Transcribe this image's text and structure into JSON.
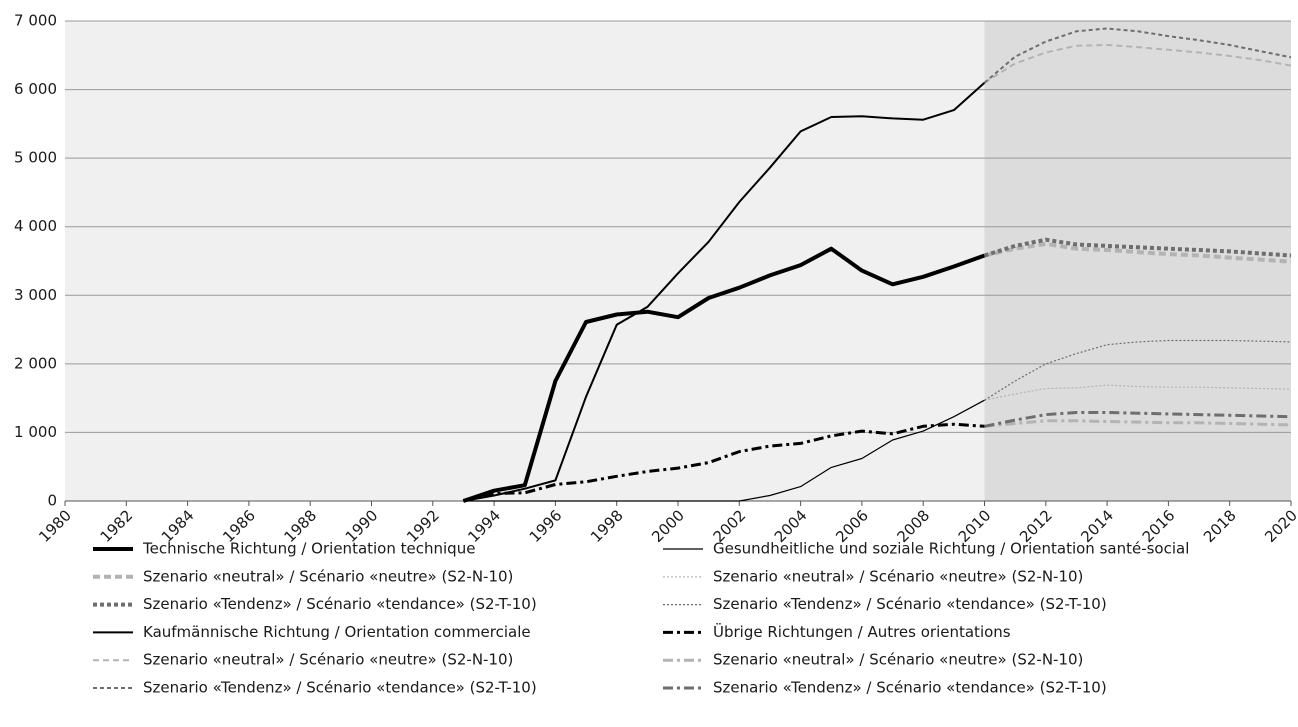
{
  "chart_data": {
    "type": "line",
    "x": [
      1993,
      1994,
      1995,
      1996,
      1997,
      1998,
      1999,
      2000,
      2001,
      2002,
      2003,
      2004,
      2005,
      2006,
      2007,
      2008,
      2009,
      2010,
      2011,
      2012,
      2013,
      2014,
      2015,
      2016,
      2017,
      2018,
      2019,
      2020
    ],
    "xlim": [
      1980,
      2020
    ],
    "xticks": [
      1980,
      1982,
      1984,
      1986,
      1988,
      1990,
      1992,
      1994,
      1996,
      1998,
      2000,
      2002,
      2004,
      2006,
      2008,
      2010,
      2012,
      2014,
      2016,
      2018,
      2020
    ],
    "ylim": [
      0,
      7000
    ],
    "yticks": [
      0,
      {
        "value": 1000,
        "label": "1 000"
      },
      {
        "value": 2000,
        "label": "2 000"
      },
      {
        "value": 3000,
        "label": "3 000"
      },
      {
        "value": 4000,
        "label": "4 000"
      },
      {
        "value": 5000,
        "label": "5 000"
      },
      {
        "value": 6000,
        "label": "6 000"
      },
      {
        "value": 7000,
        "label": "7 000"
      }
    ],
    "grid": true,
    "series": [
      {
        "name": "Technische Richtung / Orientation technique",
        "color": "#000000",
        "values": [
          0,
          150,
          230,
          1750,
          2610,
          2720,
          2760,
          2680,
          2960,
          3110,
          3290,
          3440,
          3680,
          3360,
          3160,
          3270,
          3420,
          3580,
          null,
          null,
          null,
          null,
          null,
          null,
          null,
          null,
          null,
          null
        ]
      },
      {
        "name": "Szenario «neutral» / Scénario «neutre» (S2-N-10)",
        "color": "#b3b3b3",
        "values": [
          null,
          null,
          null,
          null,
          null,
          null,
          null,
          null,
          null,
          null,
          null,
          null,
          null,
          null,
          null,
          null,
          null,
          3580,
          3680,
          3750,
          3680,
          3660,
          3630,
          3600,
          3580,
          3550,
          3520,
          3490
        ]
      },
      {
        "name": "Szenario «Tendenz» / Scénario «tendance» (S2-T-10)",
        "color": "#6e6e6e",
        "values": [
          null,
          null,
          null,
          null,
          null,
          null,
          null,
          null,
          null,
          null,
          null,
          null,
          null,
          null,
          null,
          null,
          null,
          3580,
          3720,
          3810,
          3740,
          3720,
          3700,
          3680,
          3660,
          3640,
          3610,
          3580
        ]
      },
      {
        "name": "Kaufmännische Richtung / Orientation commerciale",
        "color": "#000000",
        "values": [
          0,
          80,
          180,
          300,
          1520,
          2570,
          2830,
          3320,
          3780,
          4360,
          4860,
          5390,
          5600,
          5610,
          5580,
          5560,
          5700,
          6100,
          null,
          null,
          null,
          null,
          null,
          null,
          null,
          null,
          null,
          null
        ]
      },
      {
        "name": "Szenario «neutral» / Scénario «neutre» (S2-N-10)",
        "color": "#b3b3b3",
        "values": [
          null,
          null,
          null,
          null,
          null,
          null,
          null,
          null,
          null,
          null,
          null,
          null,
          null,
          null,
          null,
          null,
          null,
          6100,
          6380,
          6540,
          6640,
          6650,
          6620,
          6580,
          6540,
          6490,
          6430,
          6350
        ]
      },
      {
        "name": "Szenario «Tendenz» / Scénario «tendance» (S2-T-10)",
        "color": "#6e6e6e",
        "values": [
          null,
          null,
          null,
          null,
          null,
          null,
          null,
          null,
          null,
          null,
          null,
          null,
          null,
          null,
          null,
          null,
          null,
          6100,
          6480,
          6700,
          6850,
          6890,
          6850,
          6780,
          6720,
          6650,
          6560,
          6470
        ]
      },
      {
        "name": "Gesundheitliche und soziale Richtung / Orientation santé-social",
        "color": "#000000",
        "values": [
          0,
          0,
          0,
          0,
          0,
          0,
          0,
          0,
          0,
          0,
          80,
          210,
          490,
          620,
          890,
          1020,
          1230,
          1470,
          null,
          null,
          null,
          null,
          null,
          null,
          null,
          null,
          null,
          null
        ]
      },
      {
        "name": "Szenario «neutral» / Scénario «neutre» (S2-N-10)",
        "color": "#b3b3b3",
        "values": [
          null,
          null,
          null,
          null,
          null,
          null,
          null,
          null,
          null,
          null,
          null,
          null,
          null,
          null,
          null,
          null,
          null,
          1470,
          1560,
          1640,
          1650,
          1690,
          1670,
          1660,
          1660,
          1650,
          1640,
          1630
        ]
      },
      {
        "name": "Szenario «Tendenz» / Scénario «tendance» (S2-T-10)",
        "color": "#6e6e6e",
        "values": [
          null,
          null,
          null,
          null,
          null,
          null,
          null,
          null,
          null,
          null,
          null,
          null,
          null,
          null,
          null,
          null,
          null,
          1470,
          1750,
          2000,
          2150,
          2280,
          2320,
          2340,
          2340,
          2340,
          2330,
          2320
        ]
      },
      {
        "name": "Übrige Richtungen / Autres orientations",
        "color": "#000000",
        "values": [
          0,
          110,
          120,
          240,
          280,
          360,
          430,
          480,
          560,
          720,
          800,
          840,
          950,
          1020,
          980,
          1090,
          1120,
          1090,
          null,
          null,
          null,
          null,
          null,
          null,
          null,
          null,
          null,
          null
        ]
      },
      {
        "name": "Szenario «neutral» / Scénario «neutre» (S2-N-10)",
        "color": "#b3b3b3",
        "values": [
          null,
          null,
          null,
          null,
          null,
          null,
          null,
          null,
          null,
          null,
          null,
          null,
          null,
          null,
          null,
          null,
          null,
          1090,
          1130,
          1170,
          1170,
          1160,
          1150,
          1140,
          1140,
          1130,
          1120,
          1110
        ]
      },
      {
        "name": "Szenario «Tendenz» / Scénario «tendance» (S2-T-10)",
        "color": "#6e6e6e",
        "values": [
          null,
          null,
          null,
          null,
          null,
          null,
          null,
          null,
          null,
          null,
          null,
          null,
          null,
          null,
          null,
          null,
          null,
          1090,
          1180,
          1260,
          1290,
          1290,
          1280,
          1270,
          1260,
          1250,
          1240,
          1230
        ]
      }
    ]
  }
}
